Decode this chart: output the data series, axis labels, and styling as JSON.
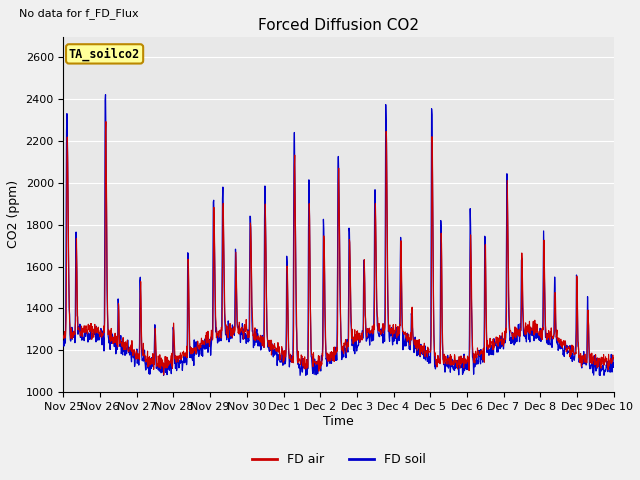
{
  "title": "Forced Diffusion CO2",
  "top_left_text": "No data for f_FD_Flux",
  "box_label": "TA_soilco2",
  "xlabel": "Time",
  "ylabel": "CO2 (ppm)",
  "ylim": [
    1000,
    2700
  ],
  "yticks": [
    1000,
    1200,
    1400,
    1600,
    1800,
    2000,
    2200,
    2400,
    2600
  ],
  "background_color": "#e8e8e8",
  "fig_background": "#f0f0f0",
  "legend_labels": [
    "FD air",
    "FD soil"
  ],
  "legend_colors": [
    "#cc0000",
    "#0000cc"
  ],
  "xtick_labels": [
    "Nov 25",
    "Nov 26",
    "Nov 27",
    "Nov 28",
    "Nov 29",
    "Nov 30",
    "Dec 1",
    "Dec 2",
    "Dec 3",
    "Dec 4",
    "Dec 5",
    "Dec 6",
    "Dec 7",
    "Dec 8",
    "Dec 9",
    "Dec 10"
  ],
  "n_days": 15,
  "n_points": 1440
}
